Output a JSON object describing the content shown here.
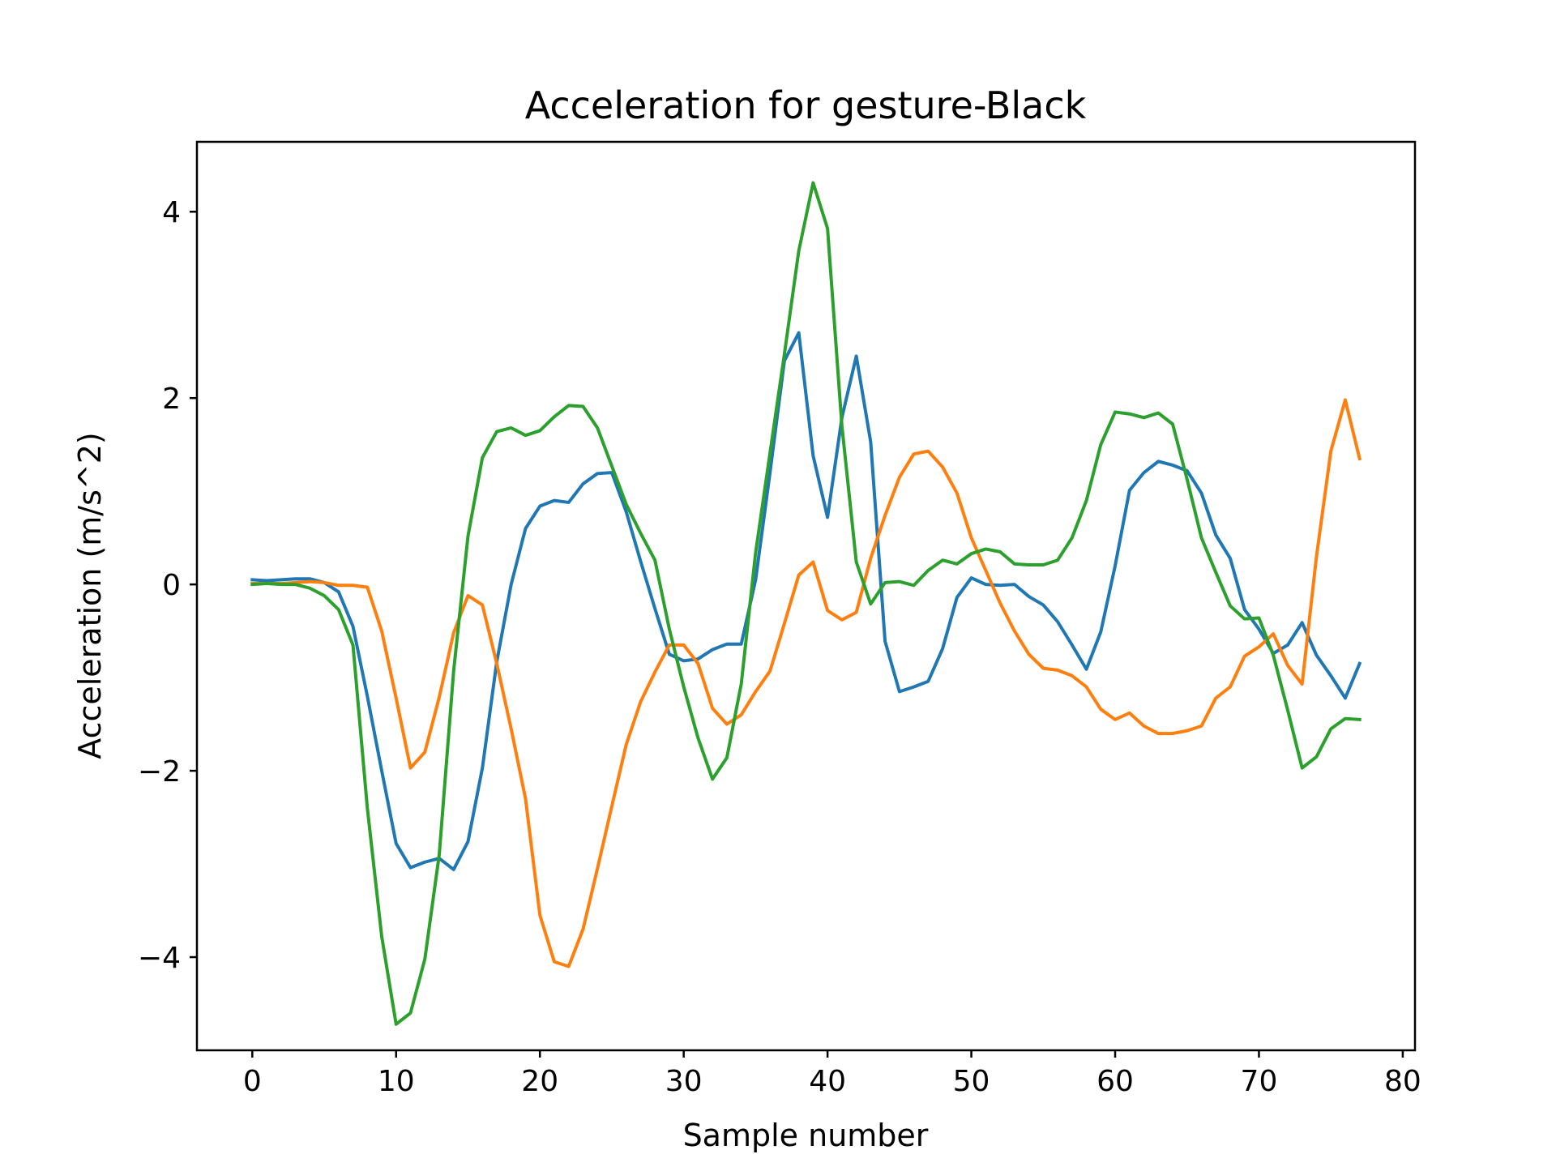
{
  "chart_data": {
    "type": "line",
    "title": "Acceleration for gesture-Black",
    "xlabel": "Sample number",
    "ylabel": "Acceleration (m/s^2)",
    "xlim": [
      -3.85,
      80.85
    ],
    "ylim": [
      -5.0,
      4.75
    ],
    "xticks": [
      0,
      10,
      20,
      30,
      40,
      50,
      60,
      70,
      80
    ],
    "xtick_labels": [
      "0",
      "10",
      "20",
      "30",
      "40",
      "50",
      "60",
      "70",
      "80"
    ],
    "yticks": [
      4,
      2,
      0,
      -2,
      -4
    ],
    "ytick_labels": [
      "4",
      "2",
      "0",
      "−2",
      "−4"
    ],
    "grid": false,
    "legend": "none",
    "series": [
      {
        "color": "#1f77b4",
        "values": [
          0.05,
          0.04,
          0.05,
          0.06,
          0.06,
          0.02,
          -0.08,
          -0.45,
          -1.2,
          -2.0,
          -2.78,
          -3.04,
          -2.98,
          -2.94,
          -3.06,
          -2.76,
          -1.97,
          -0.83,
          0.0,
          0.6,
          0.84,
          0.9,
          0.88,
          1.08,
          1.19,
          1.2,
          0.78,
          0.25,
          -0.26,
          -0.75,
          -0.82,
          -0.8,
          -0.7,
          -0.64,
          -0.64,
          0.05,
          1.2,
          2.4,
          2.7,
          1.38,
          0.72,
          1.79,
          2.45,
          1.53,
          -0.61,
          -1.15,
          -1.1,
          -1.04,
          -0.69,
          -0.14,
          0.07,
          0.0,
          -0.01,
          0.0,
          -0.13,
          -0.22,
          -0.4,
          -0.65,
          -0.91,
          -0.51,
          0.2,
          1.01,
          1.2,
          1.32,
          1.28,
          1.22,
          0.98,
          0.53,
          0.28,
          -0.27,
          -0.48,
          -0.74,
          -0.65,
          -0.41,
          -0.76,
          -0.98,
          -1.22,
          -0.85
        ]
      },
      {
        "color": "#ff7f0e",
        "values": [
          0.01,
          0.01,
          0.01,
          0.02,
          0.03,
          0.02,
          -0.01,
          -0.01,
          -0.03,
          -0.5,
          -1.22,
          -1.97,
          -1.8,
          -1.21,
          -0.52,
          -0.12,
          -0.22,
          -0.85,
          -1.55,
          -2.3,
          -3.55,
          -4.05,
          -4.1,
          -3.7,
          -3.05,
          -2.38,
          -1.72,
          -1.26,
          -0.94,
          -0.65,
          -0.65,
          -0.85,
          -1.33,
          -1.5,
          -1.4,
          -1.15,
          -0.93,
          -0.42,
          0.1,
          0.24,
          -0.28,
          -0.38,
          -0.3,
          0.28,
          0.74,
          1.15,
          1.4,
          1.43,
          1.26,
          0.98,
          0.5,
          0.15,
          -0.2,
          -0.5,
          -0.75,
          -0.9,
          -0.92,
          -0.98,
          -1.1,
          -1.34,
          -1.45,
          -1.38,
          -1.52,
          -1.6,
          -1.6,
          -1.57,
          -1.52,
          -1.22,
          -1.1,
          -0.77,
          -0.67,
          -0.53,
          -0.87,
          -1.07,
          0.3,
          1.43,
          1.98,
          1.35
        ]
      },
      {
        "color": "#2ca02c",
        "values": [
          0.0,
          0.01,
          0.0,
          0.0,
          -0.04,
          -0.12,
          -0.27,
          -0.65,
          -2.4,
          -3.78,
          -4.72,
          -4.6,
          -4.02,
          -2.9,
          -0.93,
          0.52,
          1.36,
          1.64,
          1.68,
          1.6,
          1.65,
          1.8,
          1.92,
          1.91,
          1.68,
          1.27,
          0.86,
          0.55,
          0.26,
          -0.48,
          -1.1,
          -1.65,
          -2.09,
          -1.86,
          -1.07,
          0.34,
          1.41,
          2.47,
          3.58,
          4.31,
          3.82,
          1.7,
          0.24,
          -0.21,
          0.02,
          0.03,
          -0.01,
          0.15,
          0.26,
          0.22,
          0.33,
          0.38,
          0.35,
          0.22,
          0.21,
          0.21,
          0.26,
          0.5,
          0.9,
          1.5,
          1.85,
          1.83,
          1.79,
          1.84,
          1.72,
          1.13,
          0.5,
          0.13,
          -0.23,
          -0.37,
          -0.36,
          -0.76,
          -1.35,
          -1.97,
          -1.85,
          -1.55,
          -1.44,
          -1.45
        ]
      }
    ]
  }
}
